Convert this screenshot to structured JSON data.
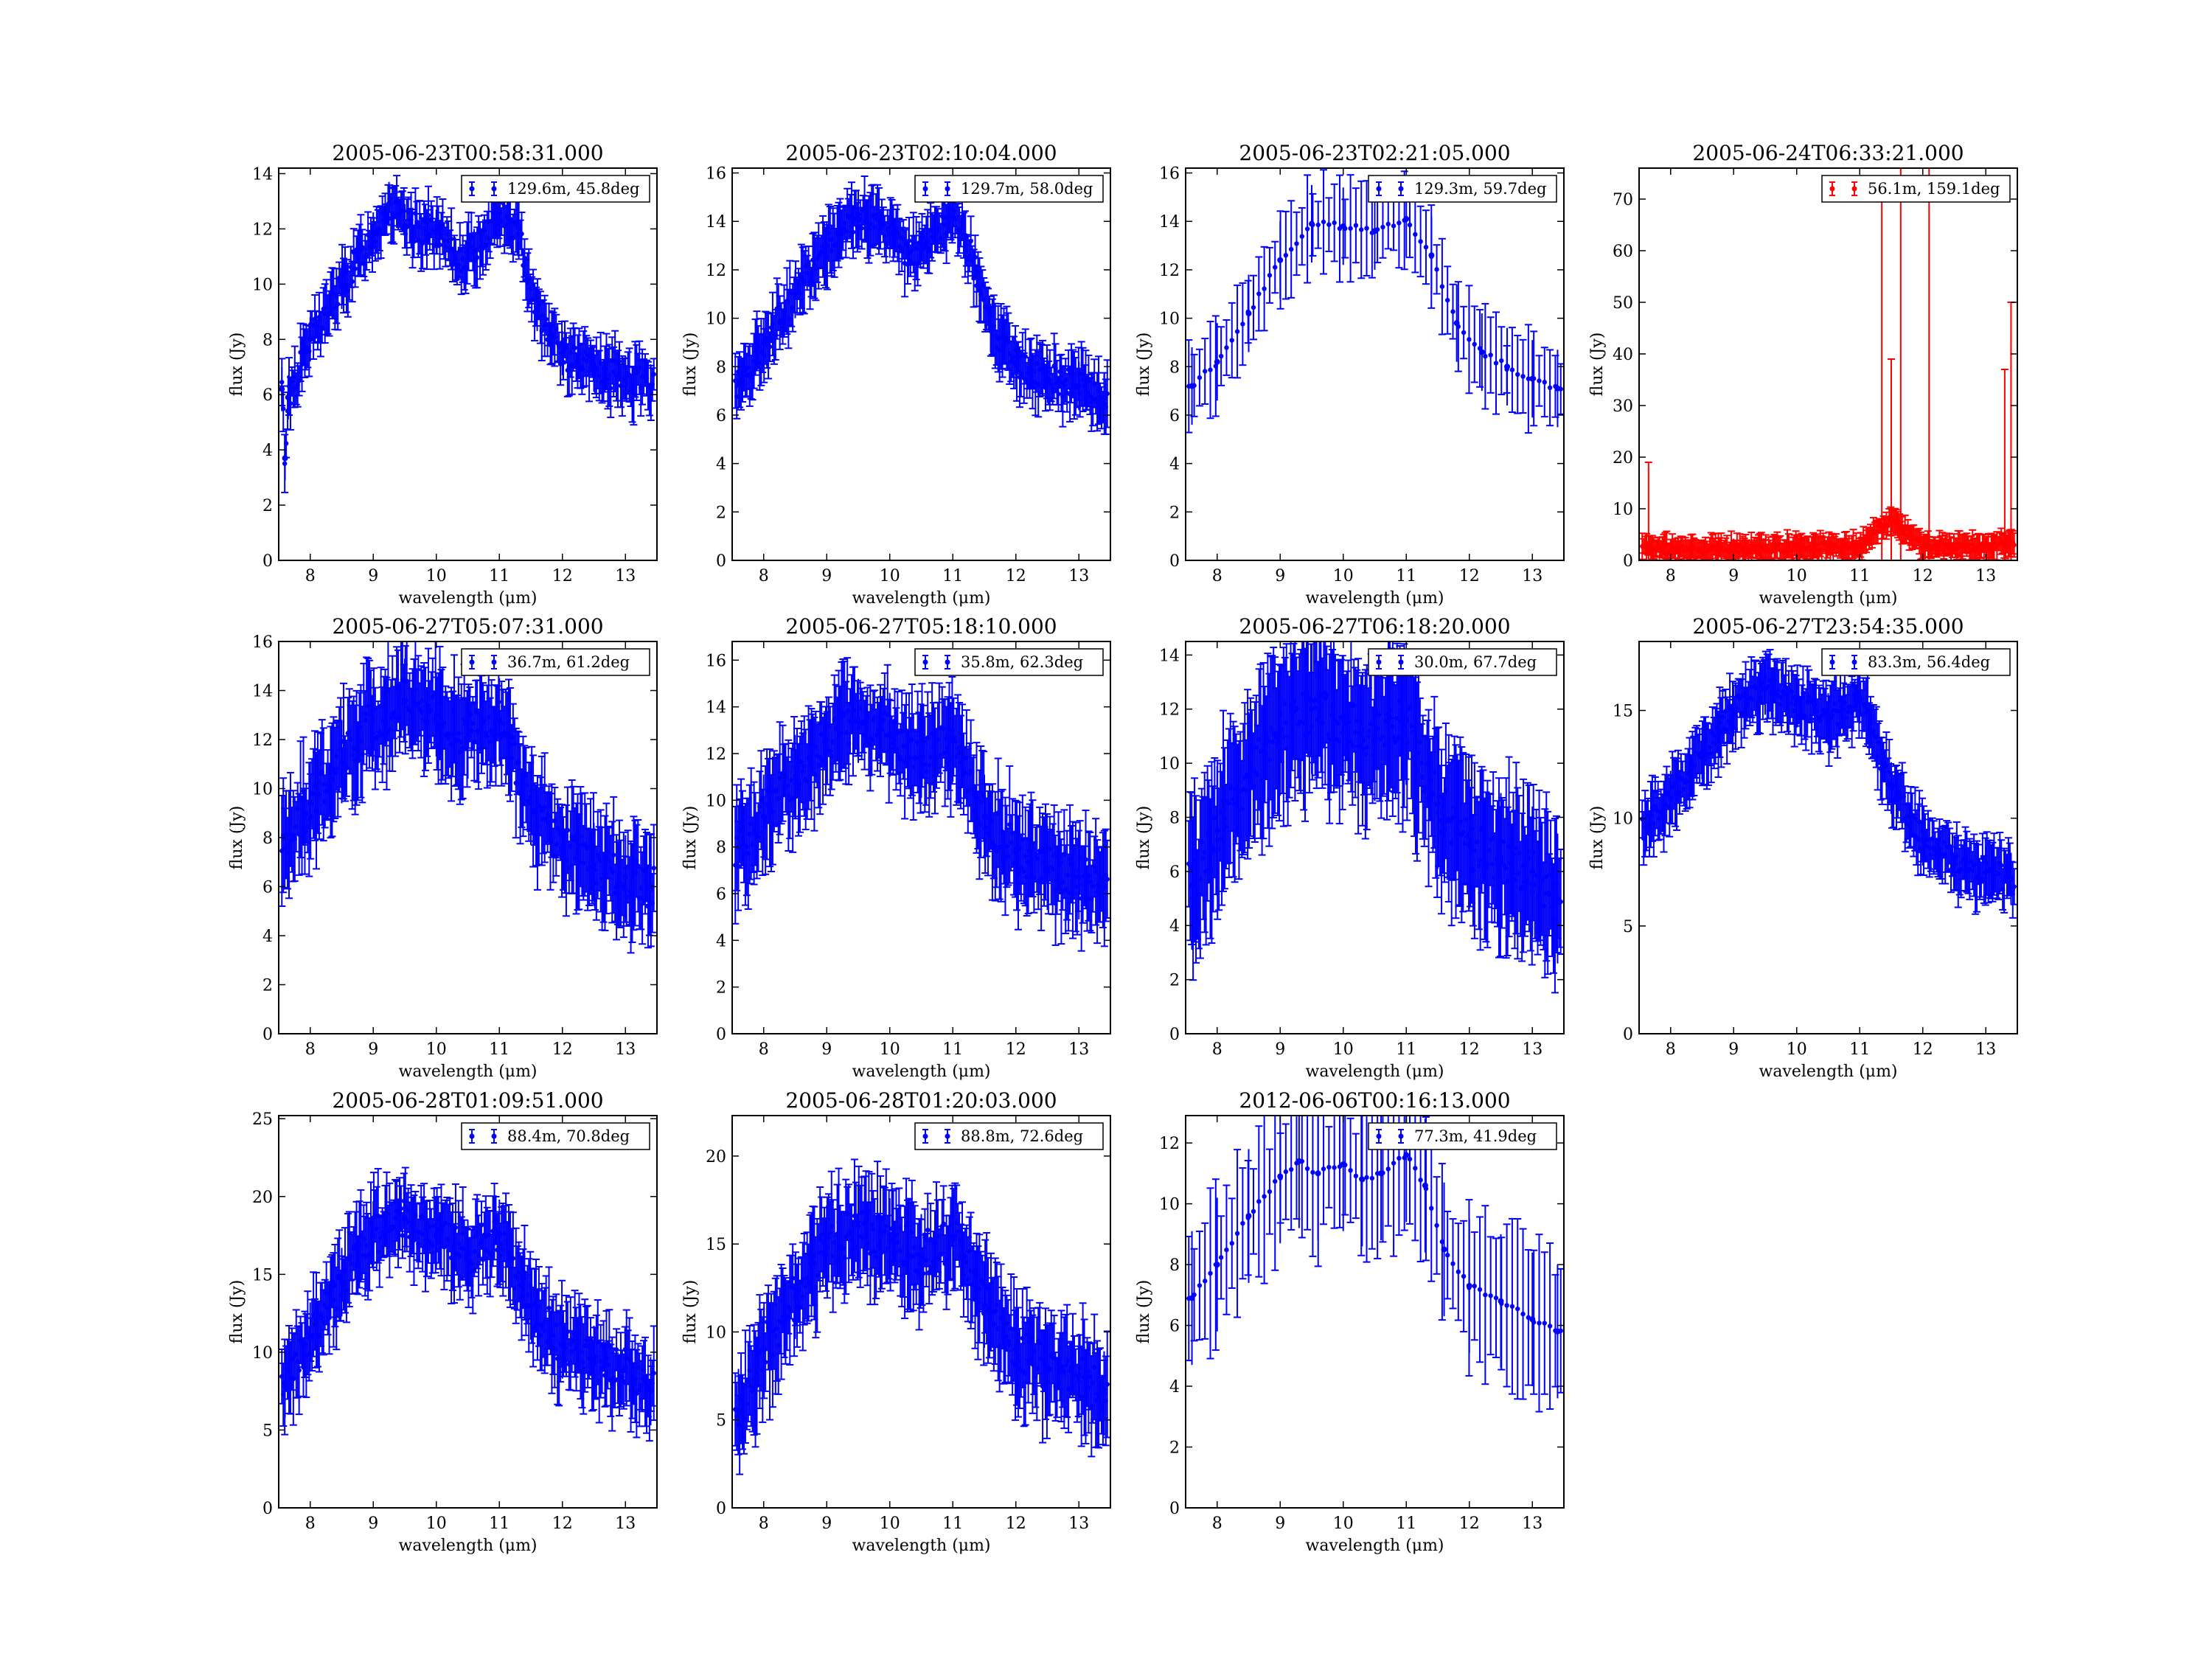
{
  "figure": {
    "background": "#ffffff",
    "colors": {
      "blue": "#0000ff",
      "red": "#ff0000"
    },
    "xlabel": "wavelength (μm)",
    "ylabel": "flux (Jy)"
  },
  "chart_data": [
    {
      "type": "scatter",
      "title": "2005-06-23T00:58:31.000",
      "legend": {
        "label": "129.6m, 45.8deg",
        "placement": "upper right"
      },
      "color": "#0000ff",
      "xlim": [
        7.5,
        13.5
      ],
      "ylim": [
        0,
        14.2
      ],
      "xticks": [
        8,
        9,
        10,
        11,
        12,
        13
      ],
      "yticks": [
        0,
        2,
        4,
        6,
        8,
        10,
        12,
        14
      ],
      "xlabel": "wavelength (μm)",
      "ylabel": "flux (Jy)",
      "profile": {
        "start": 6.1,
        "peak1": 12.3,
        "dip": 11.0,
        "peak2": 12.5,
        "end": 6.6,
        "noise": 0.55,
        "err": 0.8
      },
      "series": [
        {
          "x": [
            7.55,
            7.6,
            7.65,
            8.0,
            8.5,
            9.0,
            9.25,
            9.5,
            10.0,
            10.3,
            10.6,
            11.0,
            11.3,
            11.6,
            12.0,
            12.5,
            13.0,
            13.4
          ],
          "y": [
            6.2,
            3.7,
            5.9,
            8.0,
            9.9,
            11.8,
            12.9,
            12.1,
            11.9,
            10.9,
            11.2,
            12.6,
            11.8,
            9.1,
            7.5,
            6.9,
            6.6,
            6.3
          ]
        }
      ]
    },
    {
      "type": "scatter",
      "title": "2005-06-23T02:10:04.000",
      "legend": {
        "label": "129.7m, 58.0deg",
        "placement": "upper right"
      },
      "color": "#0000ff",
      "xlim": [
        7.5,
        13.5
      ],
      "ylim": [
        0,
        16.2
      ],
      "xticks": [
        8,
        9,
        10,
        11,
        12,
        13
      ],
      "yticks": [
        0,
        2,
        4,
        6,
        8,
        10,
        12,
        14,
        16
      ],
      "xlabel": "wavelength (μm)",
      "ylabel": "flux (Jy)",
      "profile": {
        "start": 7.2,
        "peak1": 14.4,
        "dip": 12.6,
        "peak2": 14.2,
        "end": 7.0,
        "noise": 0.6,
        "err": 1.0
      },
      "series": [
        {
          "x": [
            7.6,
            8.0,
            8.5,
            9.0,
            9.5,
            10.0,
            10.3,
            10.6,
            11.0,
            11.2,
            11.6,
            12.0,
            12.5,
            13.0,
            13.4
          ],
          "y": [
            7.3,
            9.0,
            11.0,
            13.0,
            14.3,
            13.5,
            12.7,
            12.9,
            14.2,
            13.4,
            9.6,
            8.1,
            7.5,
            7.2,
            6.7
          ]
        }
      ]
    },
    {
      "type": "scatter",
      "title": "2005-06-23T02:21:05.000",
      "legend": {
        "label": "129.3m, 59.7deg",
        "placement": "upper right"
      },
      "color": "#0000ff",
      "xlim": [
        7.5,
        13.5
      ],
      "ylim": [
        0,
        16.2
      ],
      "xticks": [
        8,
        9,
        10,
        11,
        12,
        13
      ],
      "yticks": [
        0,
        2,
        4,
        6,
        8,
        10,
        12,
        14,
        16
      ],
      "xlabel": "wavelength (μm)",
      "ylabel": "flux (Jy)",
      "profile": {
        "start": 7.0,
        "peak1": 14.0,
        "dip": 13.6,
        "peak2": 14.0,
        "end": 7.0,
        "noise": 0.12,
        "err": 1.6,
        "smooth": true
      },
      "series": [
        {
          "x": [
            7.6,
            8.0,
            8.5,
            9.0,
            9.5,
            10.0,
            10.5,
            11.0,
            11.4,
            11.8,
            12.2,
            12.6,
            13.0,
            13.4
          ],
          "y": [
            7.2,
            8.2,
            10.2,
            12.4,
            13.9,
            13.8,
            13.6,
            14.1,
            12.6,
            9.8,
            8.6,
            8.0,
            7.5,
            7.1
          ]
        }
      ]
    },
    {
      "type": "scatter",
      "title": "2005-06-24T06:33:21.000",
      "legend": {
        "label": "56.1m, 159.1deg",
        "placement": "upper right"
      },
      "color": "#ff0000",
      "xlim": [
        7.5,
        13.5
      ],
      "ylim": [
        0,
        76
      ],
      "xticks": [
        8,
        9,
        10,
        11,
        12,
        13
      ],
      "yticks": [
        0,
        10,
        20,
        30,
        40,
        50,
        60,
        70
      ],
      "xlabel": "wavelength (μm)",
      "ylabel": "flux (Jy)",
      "profile": {
        "start": 2.5,
        "peak1": 2.8,
        "dip": 2.5,
        "peak2": 2.8,
        "end": 3.0,
        "noise": 0.8,
        "err": 2.0,
        "flat": true
      },
      "spikes": [
        {
          "x": 7.65,
          "hi": 19
        },
        {
          "x": 11.35,
          "hi": 70
        },
        {
          "x": 11.5,
          "hi": 39
        },
        {
          "x": 11.65,
          "hi": 76
        },
        {
          "x": 12.1,
          "hi": 76
        },
        {
          "x": 13.3,
          "hi": 37
        },
        {
          "x": 13.4,
          "hi": 50
        }
      ],
      "series": [
        {
          "x": [
            7.6,
            8.0,
            9.0,
            10.0,
            11.0,
            11.5,
            12.0,
            13.0,
            13.4
          ],
          "y": [
            3.0,
            2.0,
            2.2,
            2.5,
            2.6,
            8.0,
            2.8,
            2.5,
            3.5
          ]
        }
      ]
    },
    {
      "type": "scatter",
      "title": "2005-06-27T05:07:31.000",
      "legend": {
        "label": "36.7m, 61.2deg",
        "placement": "upper right"
      },
      "color": "#0000ff",
      "xlim": [
        7.5,
        13.5
      ],
      "ylim": [
        0,
        16.0
      ],
      "xticks": [
        8,
        9,
        10,
        11,
        12,
        13
      ],
      "yticks": [
        0,
        2,
        4,
        6,
        8,
        10,
        12,
        14,
        16
      ],
      "xlabel": "wavelength (μm)",
      "ylabel": "flux (Jy)",
      "profile": {
        "start": 8.0,
        "peak1": 13.6,
        "dip": 12.0,
        "peak2": 12.8,
        "end": 6.0,
        "noise": 0.9,
        "err": 1.7
      },
      "series": [
        {
          "x": [
            7.6,
            8.0,
            8.5,
            9.0,
            9.5,
            10.0,
            10.5,
            11.0,
            11.5,
            12.0,
            12.5,
            13.0,
            13.4
          ],
          "y": [
            8.0,
            9.4,
            11.1,
            12.8,
            13.6,
            13.0,
            12.1,
            12.8,
            9.4,
            7.6,
            6.9,
            6.4,
            6.0
          ]
        }
      ]
    },
    {
      "type": "scatter",
      "title": "2005-06-27T05:18:10.000",
      "legend": {
        "label": "35.8m, 62.3deg",
        "placement": "upper right"
      },
      "color": "#0000ff",
      "xlim": [
        7.5,
        13.5
      ],
      "ylim": [
        0,
        16.8
      ],
      "xticks": [
        8,
        9,
        10,
        11,
        12,
        13
      ],
      "yticks": [
        0,
        2,
        4,
        6,
        8,
        10,
        12,
        14,
        16
      ],
      "xlabel": "wavelength (μm)",
      "ylabel": "flux (Jy)",
      "profile": {
        "start": 8.0,
        "peak1": 13.2,
        "dip": 11.8,
        "peak2": 12.6,
        "end": 6.5,
        "noise": 0.9,
        "err": 1.8
      },
      "series": [
        {
          "x": [
            7.6,
            8.0,
            8.5,
            9.0,
            9.5,
            10.0,
            10.5,
            11.0,
            11.5,
            12.0,
            12.5,
            13.0,
            13.4
          ],
          "y": [
            8.0,
            9.3,
            11.0,
            12.6,
            13.4,
            12.8,
            11.9,
            12.6,
            9.3,
            7.8,
            7.1,
            6.7,
            6.3
          ]
        }
      ]
    },
    {
      "type": "scatter",
      "title": "2005-06-27T06:18:20.000",
      "legend": {
        "label": "30.0m, 67.7deg",
        "placement": "upper right"
      },
      "color": "#0000ff",
      "xlim": [
        7.5,
        13.5
      ],
      "ylim": [
        0,
        14.5
      ],
      "xticks": [
        8,
        9,
        10,
        11,
        12,
        13
      ],
      "yticks": [
        0,
        2,
        4,
        6,
        8,
        10,
        12,
        14
      ],
      "xlabel": "wavelength (μm)",
      "ylabel": "flux (Jy)",
      "profile": {
        "start": 6.5,
        "peak1": 12.0,
        "dip": 11.0,
        "peak2": 11.6,
        "end": 5.5,
        "noise": 0.9,
        "err": 2.4
      },
      "series": [
        {
          "x": [
            7.6,
            8.0,
            8.5,
            9.0,
            9.5,
            10.0,
            10.5,
            11.0,
            11.5,
            12.0,
            12.5,
            13.0,
            13.4
          ],
          "y": [
            5.5,
            7.5,
            9.5,
            11.2,
            12.0,
            11.6,
            11.0,
            11.6,
            8.5,
            7.0,
            6.5,
            6.0,
            5.0
          ]
        }
      ]
    },
    {
      "type": "scatter",
      "title": "2005-06-27T23:54:35.000",
      "legend": {
        "label": "83.3m, 56.4deg",
        "placement": "upper right"
      },
      "color": "#0000ff",
      "xlim": [
        7.5,
        13.5
      ],
      "ylim": [
        0,
        18.2
      ],
      "xticks": [
        8,
        9,
        10,
        11,
        12,
        13
      ],
      "yticks": [
        0,
        5,
        10,
        15
      ],
      "xlabel": "wavelength (μm)",
      "ylabel": "flux (Jy)",
      "profile": {
        "start": 9.5,
        "peak1": 16.0,
        "dip": 14.6,
        "peak2": 15.6,
        "end": 7.2,
        "noise": 0.6,
        "err": 1.2
      },
      "series": [
        {
          "x": [
            7.6,
            8.0,
            8.5,
            9.0,
            9.5,
            10.0,
            10.5,
            11.0,
            11.5,
            12.0,
            12.5,
            13.0,
            13.4
          ],
          "y": [
            9.6,
            11.0,
            13.0,
            15.0,
            16.0,
            15.4,
            14.6,
            15.6,
            11.4,
            9.0,
            8.0,
            7.5,
            7.2
          ]
        }
      ]
    },
    {
      "type": "scatter",
      "title": "2005-06-28T01:09:51.000",
      "legend": {
        "label": "88.4m, 70.8deg",
        "placement": "upper right"
      },
      "color": "#0000ff",
      "xlim": [
        7.5,
        13.5
      ],
      "ylim": [
        0,
        25.2
      ],
      "xticks": [
        8,
        9,
        10,
        11,
        12,
        13
      ],
      "yticks": [
        0,
        5,
        10,
        15,
        20,
        25
      ],
      "xlabel": "wavelength (μm)",
      "ylabel": "flux (Jy)",
      "profile": {
        "start": 8.0,
        "peak1": 18.8,
        "dip": 16.2,
        "peak2": 17.6,
        "end": 8.0,
        "noise": 1.3,
        "err": 2.2
      },
      "series": [
        {
          "x": [
            7.6,
            8.0,
            8.5,
            9.0,
            9.5,
            10.0,
            10.5,
            11.0,
            11.5,
            12.0,
            12.5,
            13.0,
            13.4
          ],
          "y": [
            8.0,
            11.0,
            14.5,
            17.5,
            18.6,
            17.5,
            16.3,
            17.6,
            13.0,
            10.5,
            9.5,
            9.0,
            7.5
          ]
        }
      ]
    },
    {
      "type": "scatter",
      "title": "2005-06-28T01:20:03.000",
      "legend": {
        "label": "88.8m, 72.6deg",
        "placement": "upper right"
      },
      "color": "#0000ff",
      "xlim": [
        7.5,
        13.5
      ],
      "ylim": [
        0,
        22.3
      ],
      "xticks": [
        8,
        9,
        10,
        11,
        12,
        13
      ],
      "yticks": [
        0,
        5,
        10,
        15,
        20
      ],
      "xlabel": "wavelength (μm)",
      "ylabel": "flux (Jy)",
      "profile": {
        "start": 6.0,
        "peak1": 16.0,
        "dip": 14.2,
        "peak2": 15.4,
        "end": 7.0,
        "noise": 1.3,
        "err": 2.4
      },
      "series": [
        {
          "x": [
            7.6,
            8.0,
            8.5,
            9.0,
            9.5,
            10.0,
            10.5,
            11.0,
            11.5,
            12.0,
            12.5,
            13.0,
            13.4
          ],
          "y": [
            5.5,
            9.0,
            12.0,
            14.8,
            16.0,
            15.2,
            14.3,
            15.4,
            11.5,
            9.0,
            8.0,
            7.5,
            6.5
          ]
        }
      ]
    },
    {
      "type": "scatter",
      "title": "2012-06-06T00:16:13.000",
      "legend": {
        "label": "77.3m, 41.9deg",
        "placement": "upper right"
      },
      "color": "#0000ff",
      "xlim": [
        7.5,
        13.5
      ],
      "ylim": [
        0,
        12.9
      ],
      "xticks": [
        8,
        9,
        10,
        11,
        12,
        13
      ],
      "yticks": [
        0,
        2,
        4,
        6,
        8,
        10,
        12
      ],
      "xlabel": "wavelength (μm)",
      "ylabel": "flux (Jy)",
      "profile": {
        "start": 6.9,
        "peak1": 11.4,
        "dip": 10.8,
        "peak2": 11.6,
        "end": 5.8,
        "noise": 0.08,
        "err": 2.2,
        "smooth": true
      },
      "series": [
        {
          "x": [
            7.6,
            8.0,
            8.5,
            9.0,
            9.3,
            9.6,
            10.0,
            10.3,
            10.6,
            11.0,
            11.3,
            11.6,
            12.0,
            12.5,
            13.0,
            13.4
          ],
          "y": [
            6.9,
            8.0,
            9.6,
            10.9,
            11.4,
            11.0,
            11.3,
            10.8,
            11.0,
            11.6,
            10.6,
            8.5,
            7.3,
            6.8,
            6.2,
            5.8
          ]
        }
      ]
    }
  ]
}
